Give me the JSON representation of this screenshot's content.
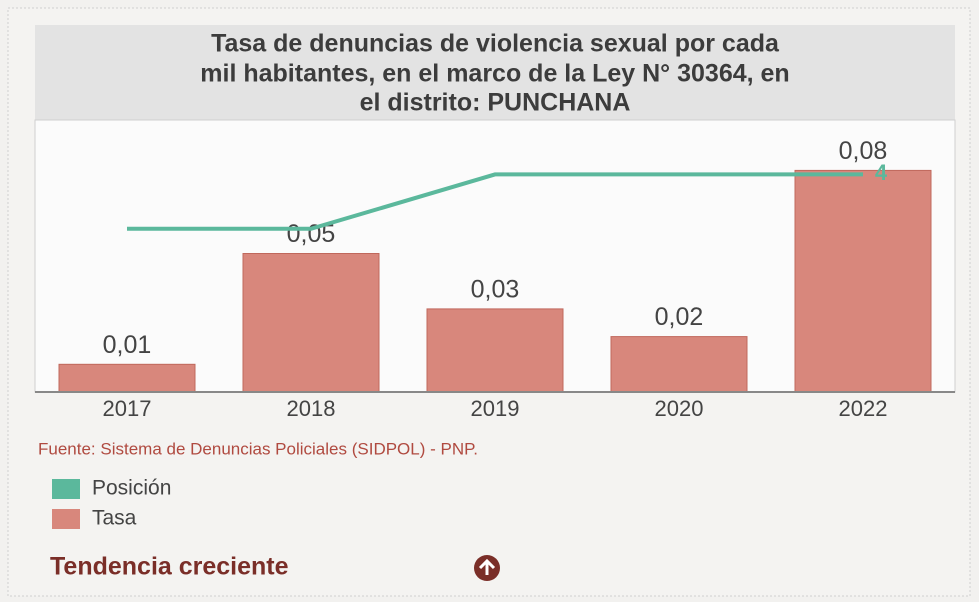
{
  "chart_data": {
    "type": "bar",
    "title": [
      "Tasa de denuncias de violencia sexual por cada",
      "mil habitantes, en el marco de la Ley N° 30364, en",
      "el distrito: PUNCHANA"
    ],
    "categories": [
      "2017",
      "2018",
      "2019",
      "2020",
      "2022"
    ],
    "series": [
      {
        "name": "Posición",
        "type": "line",
        "axis": "y2",
        "color": "#5bb89c",
        "values": [
          6,
          6,
          4,
          4,
          4
        ]
      },
      {
        "name": "Tasa",
        "type": "bar",
        "color": "#d8877c",
        "values": [
          0.01,
          0.05,
          0.03,
          0.02,
          0.08
        ],
        "value_labels": [
          "0,01",
          "0,05",
          "0,03",
          "0,02",
          "0,08"
        ]
      }
    ],
    "ylim": [
      0,
      0.1
    ],
    "y2lim": [
      12,
      2
    ],
    "source": "Fuente: Sistema de Denuncias Policiales (SIDPOL) - PNP.",
    "trend": "Tendencia creciente"
  }
}
